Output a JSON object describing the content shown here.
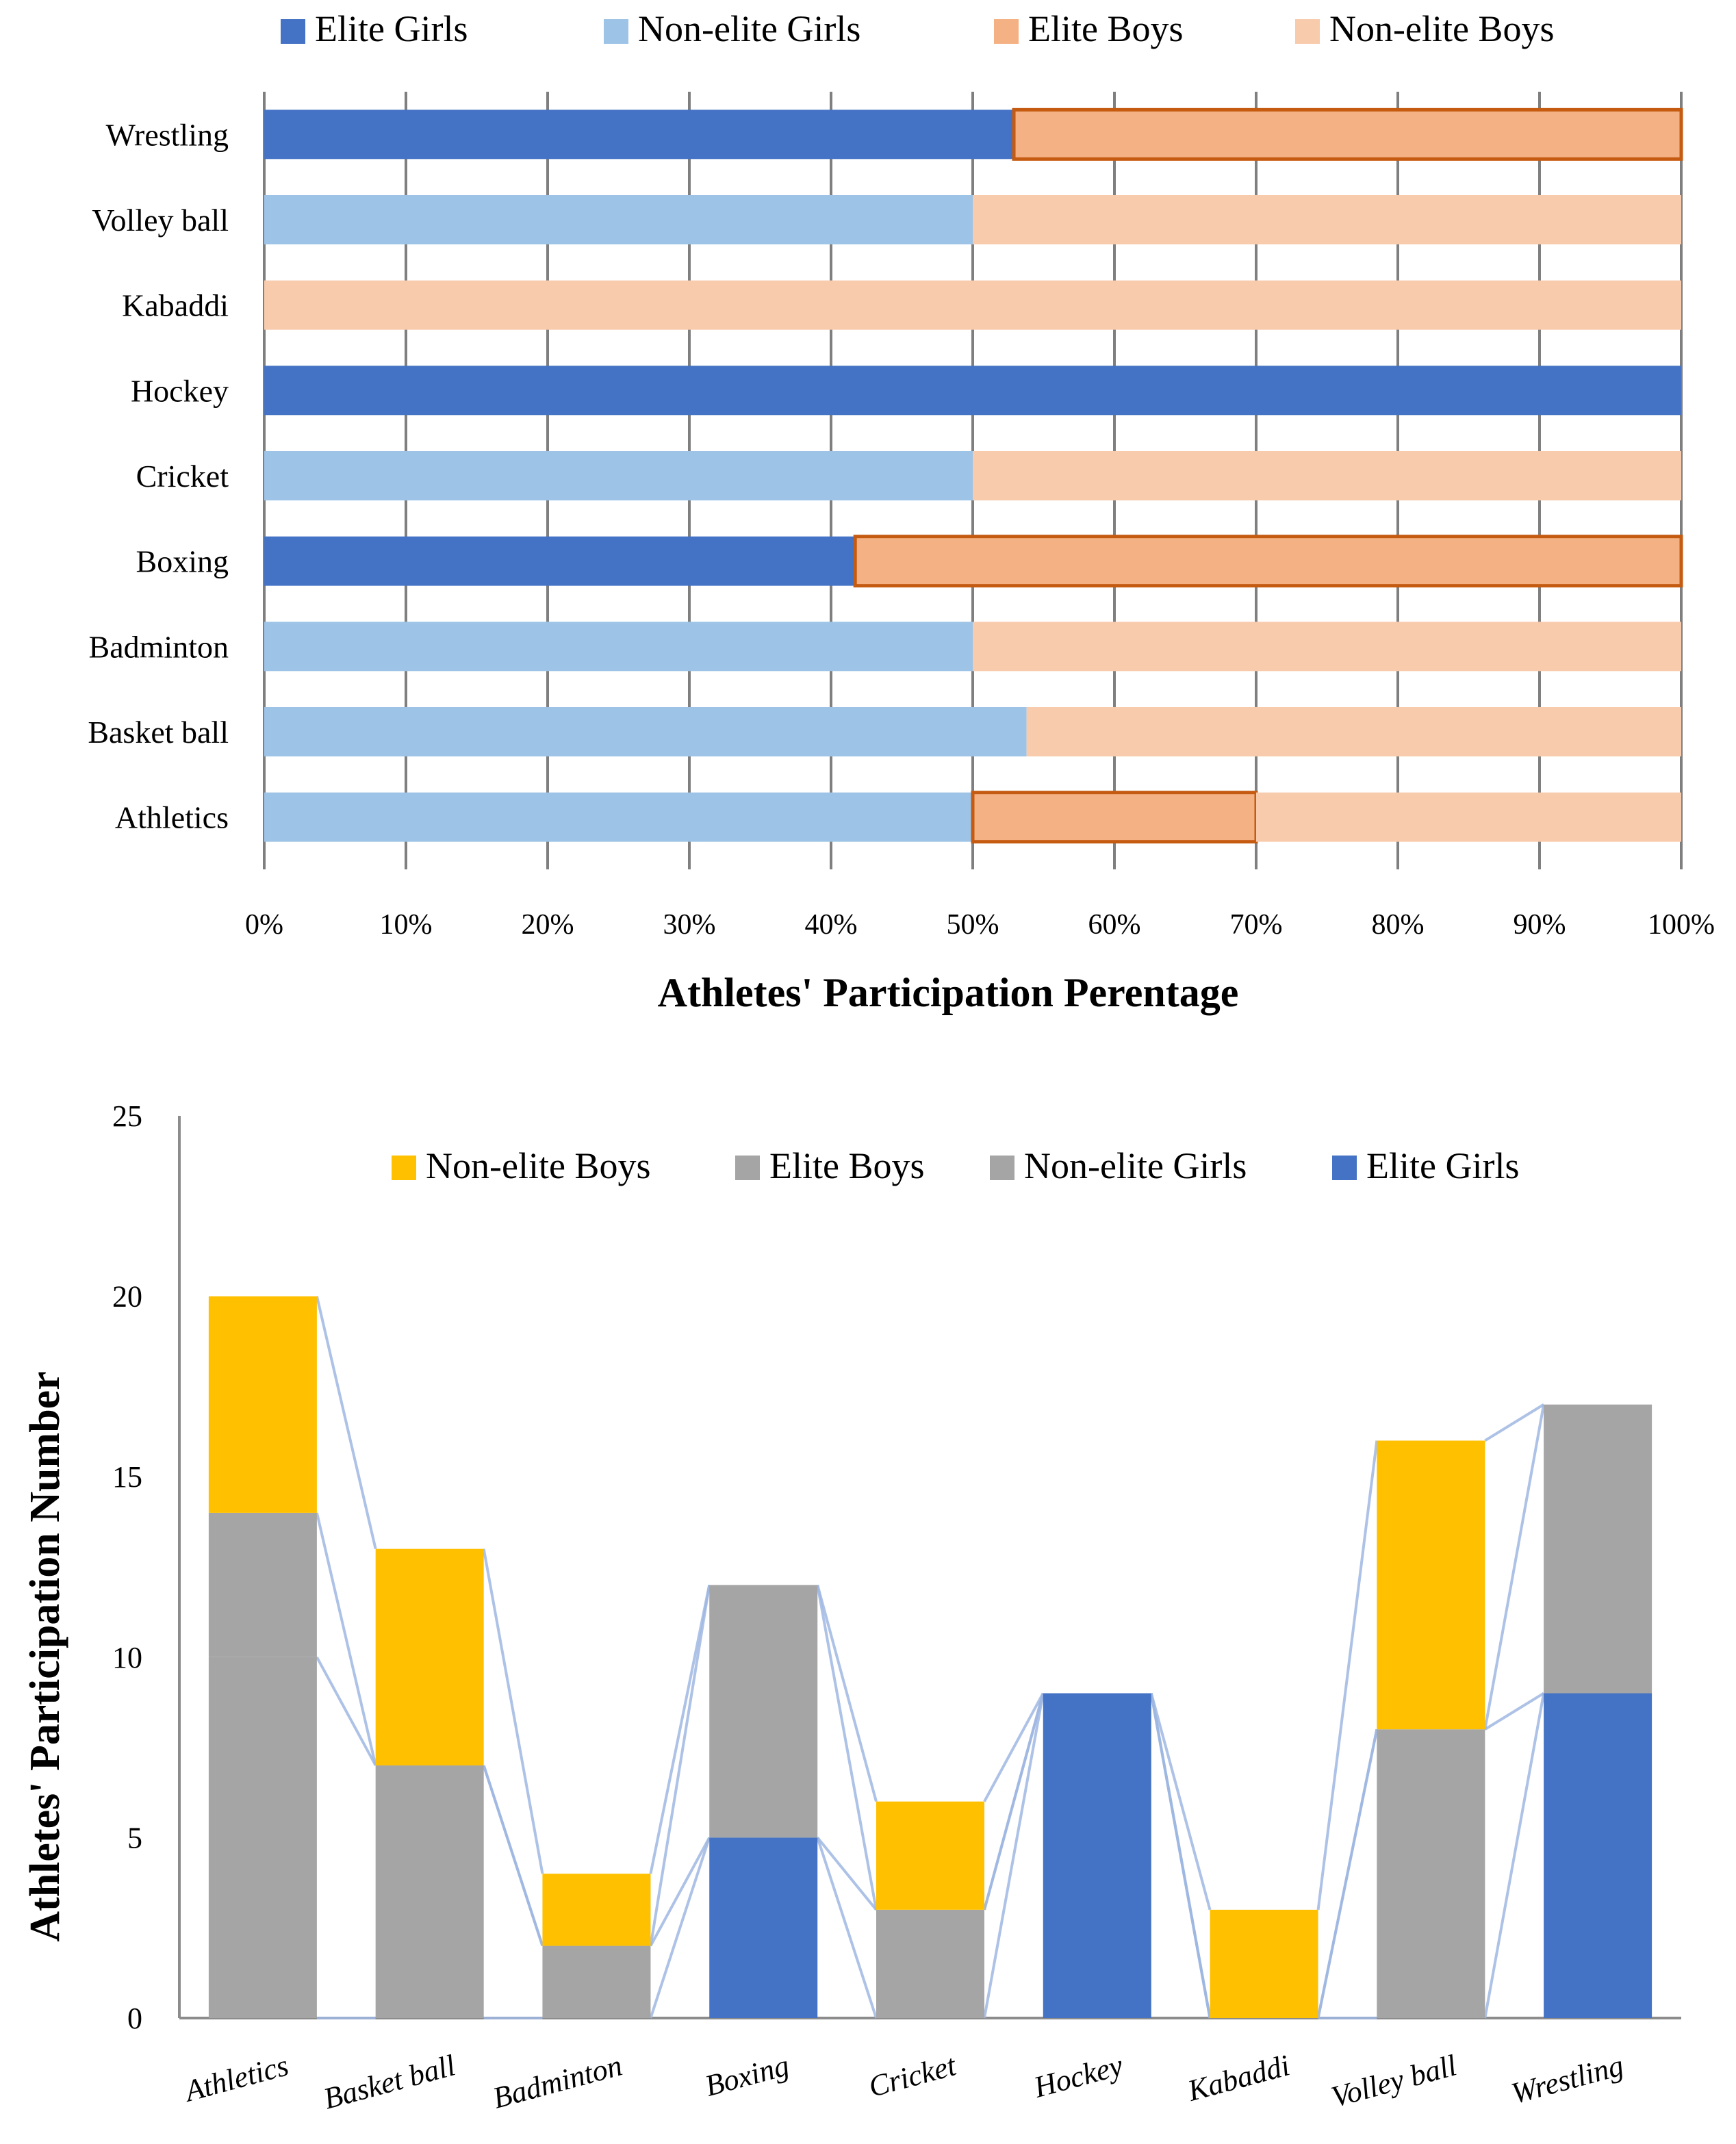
{
  "chart_data": [
    {
      "type": "bar",
      "orientation": "horizontal",
      "stacked": "percent",
      "title": "",
      "xlabel": "Athletes' Participation Perentage",
      "ylabel": "",
      "xlim": [
        0,
        100
      ],
      "xticks": [
        "0%",
        "10%",
        "20%",
        "30%",
        "40%",
        "50%",
        "60%",
        "70%",
        "80%",
        "90%",
        "100%"
      ],
      "grid": "vertical",
      "legend_position": "top",
      "categories": [
        "Athletics",
        "Basket ball",
        "Badminton",
        "Boxing",
        "Cricket",
        "Hockey",
        "Kabaddi",
        "Volley ball",
        "Wrestling"
      ],
      "series": [
        {
          "name": "Elite Girls",
          "color": "#4472C4",
          "values": [
            0,
            0,
            0,
            41.7,
            0,
            100,
            0,
            0,
            52.9
          ]
        },
        {
          "name": "Non-elite Girls",
          "color": "#9DC3E6",
          "values": [
            50,
            53.8,
            50,
            0,
            50,
            0,
            0,
            50,
            0
          ]
        },
        {
          "name": "Elite Boys",
          "color": "#F4B183",
          "outline": "#C55A11",
          "values": [
            20,
            0,
            0,
            58.3,
            0,
            0,
            0,
            0,
            47.1
          ]
        },
        {
          "name": "Non-elite Boys",
          "color": "#F8CBAD",
          "values": [
            30,
            46.2,
            50,
            0,
            50,
            0,
            100,
            50,
            0
          ]
        }
      ]
    },
    {
      "type": "bar",
      "stacked": true,
      "title": "",
      "xlabel": "",
      "ylabel": "Athletes' Participation Number",
      "ylim": [
        0,
        25
      ],
      "yticks": [
        0,
        5,
        10,
        15,
        20,
        25
      ],
      "grid": "none",
      "legend_position": "top",
      "categories": [
        "Athletics",
        "Basket ball",
        "Badminton",
        "Boxing",
        "Cricket",
        "Hockey",
        "Kabaddi",
        "Volley ball",
        "Wrestling"
      ],
      "series": [
        {
          "name": "Elite Girls",
          "color": "#4472C4",
          "values": [
            0,
            0,
            0,
            5,
            0,
            9,
            0,
            0,
            9
          ]
        },
        {
          "name": "Non-elite Girls",
          "color": "#A5A5A5",
          "values": [
            10,
            7,
            2,
            0,
            3,
            0,
            0,
            8,
            0
          ]
        },
        {
          "name": "Elite Boys",
          "color": "#A5A5A5",
          "values": [
            4,
            0,
            0,
            7,
            0,
            0,
            0,
            0,
            8
          ]
        },
        {
          "name": "Non-elite Boys",
          "color": "#FFC000",
          "values": [
            6,
            6,
            2,
            0,
            3,
            0,
            3,
            8,
            0
          ]
        }
      ],
      "legend_order": [
        "Non-elite Boys",
        "Elite Boys",
        "Non-elite Girls",
        "Elite Girls"
      ],
      "series_lines": true
    }
  ]
}
